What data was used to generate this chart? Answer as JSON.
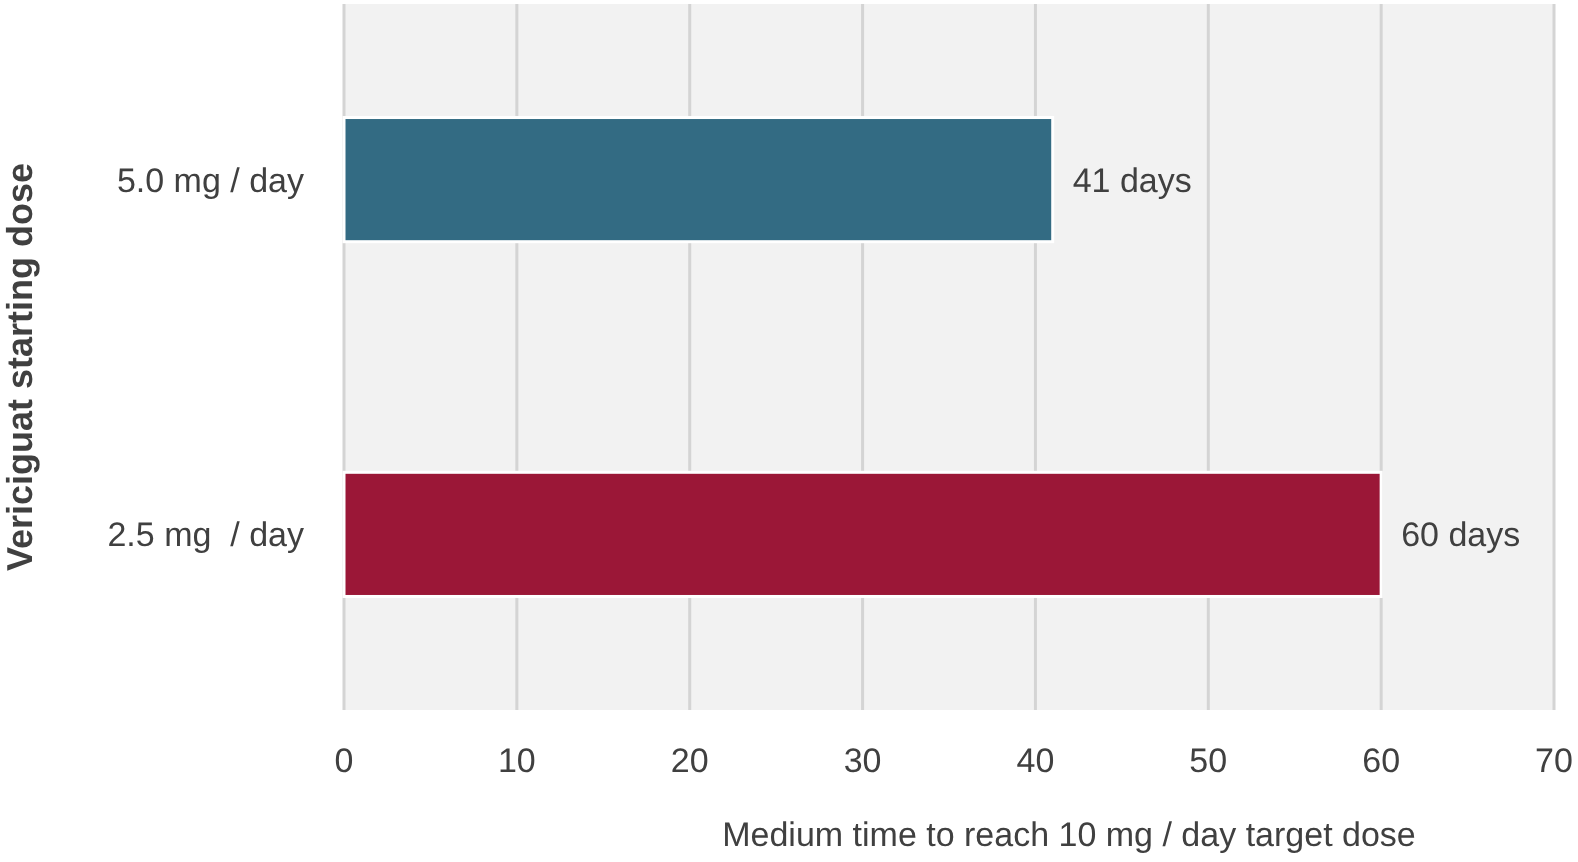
{
  "chart_data": {
    "type": "bar",
    "orientation": "horizontal",
    "categories": [
      "5.0 mg / day",
      "2.5 mg  / day"
    ],
    "values": [
      41,
      60
    ],
    "colors": [
      "#336b83",
      "#9b1737"
    ],
    "value_labels": [
      "41 days",
      "60 days"
    ],
    "xlim": [
      0,
      70
    ],
    "xticks": [
      0,
      10,
      20,
      30,
      40,
      50,
      60,
      70
    ],
    "grid": "x",
    "xlabel": "Medium time to reach 10 mg / day target dose",
    "ylabel": "Vericiguat starting dose"
  }
}
